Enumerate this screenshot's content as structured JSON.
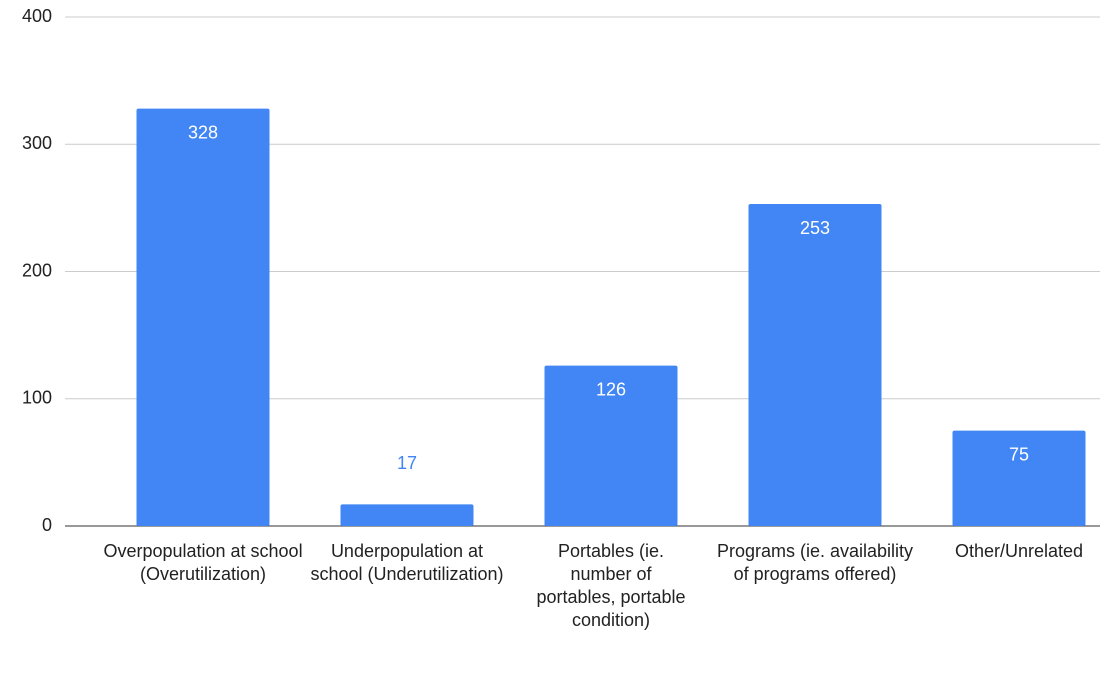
{
  "chart_data": {
    "type": "bar",
    "categories": [
      "Overpopulation at school (Overutilization)",
      "Underpopulation at school (Underutilization)",
      "Portables (ie. number of portables, portable condition)",
      "Programs (ie. availability of programs offered)",
      "Other/Unrelated"
    ],
    "values": [
      328,
      17,
      126,
      253,
      75
    ],
    "color": "#4285f4",
    "ylim": [
      0,
      400
    ],
    "yticks": [
      0,
      100,
      200,
      300,
      400
    ],
    "grid": true
  }
}
